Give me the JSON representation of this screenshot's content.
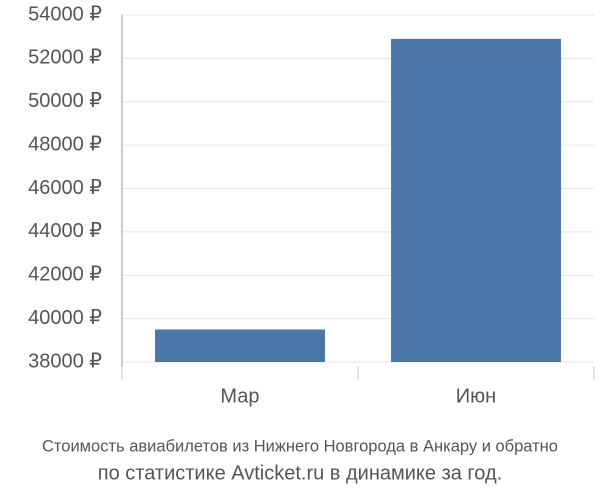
{
  "chart_data": {
    "type": "bar",
    "title_lines": [
      "Стоимость авиабилетов из Нижнего Новгорода в Анкару и обратно",
      "по статистике Avticket.ru в динамике за год."
    ],
    "categories": [
      "Мар",
      "Июн"
    ],
    "values": [
      39500,
      52900
    ],
    "color": "#4a76a8",
    "ylim": [
      38000,
      54000
    ],
    "yticks": [
      {
        "value": 38000,
        "label": "38000 ₽"
      },
      {
        "value": 40000,
        "label": "40000 ₽"
      },
      {
        "value": 42000,
        "label": "42000 ₽"
      },
      {
        "value": 44000,
        "label": "44000 ₽"
      },
      {
        "value": 46000,
        "label": "46000 ₽"
      },
      {
        "value": 48000,
        "label": "48000 ₽"
      },
      {
        "value": 50000,
        "label": "50000 ₽"
      },
      {
        "value": 52000,
        "label": "52000 ₽"
      },
      {
        "value": 54000,
        "label": "54000 ₽"
      }
    ],
    "grid": true
  }
}
